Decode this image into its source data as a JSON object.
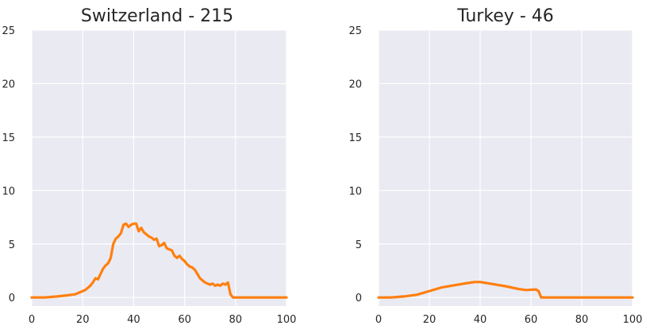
{
  "chart_data": [
    {
      "type": "line",
      "title": "Switzerland - 215",
      "xlabel": "",
      "ylabel": "",
      "xlim": [
        0,
        100
      ],
      "ylim": [
        -0.8,
        25
      ],
      "xticks": [
        0,
        20,
        40,
        60,
        80,
        100
      ],
      "yticks": [
        0,
        5,
        10,
        15,
        20,
        25
      ],
      "grid": true,
      "series": [
        {
          "color": "#ff7f0e",
          "x": [
            0,
            5,
            10,
            14,
            17,
            19,
            21,
            23,
            24,
            25,
            26,
            27,
            28,
            29,
            30,
            31,
            32,
            33,
            34,
            35,
            36,
            37,
            38,
            39,
            40,
            41,
            42,
            43,
            44,
            45,
            46,
            47,
            48,
            49,
            50,
            51,
            52,
            53,
            54,
            55,
            56,
            57,
            58,
            59,
            60,
            61,
            62,
            63,
            64,
            65,
            66,
            67,
            68,
            69,
            70,
            71,
            72,
            73,
            74,
            75,
            76,
            77,
            78,
            79,
            80,
            85,
            90,
            100
          ],
          "y": [
            0,
            0,
            0.1,
            0.2,
            0.3,
            0.5,
            0.7,
            1.1,
            1.4,
            1.8,
            1.7,
            2.2,
            2.7,
            3.0,
            3.2,
            3.7,
            5.0,
            5.5,
            5.7,
            6.0,
            6.8,
            6.9,
            6.6,
            6.8,
            6.9,
            6.9,
            6.2,
            6.5,
            6.1,
            5.9,
            5.7,
            5.6,
            5.4,
            5.5,
            4.8,
            4.9,
            5.1,
            4.6,
            4.5,
            4.4,
            3.9,
            3.7,
            3.9,
            3.6,
            3.4,
            3.1,
            2.9,
            2.8,
            2.6,
            2.2,
            1.8,
            1.6,
            1.4,
            1.3,
            1.2,
            1.3,
            1.1,
            1.2,
            1.1,
            1.3,
            1.2,
            1.4,
            0.3,
            0,
            0,
            0,
            0,
            0
          ]
        }
      ]
    },
    {
      "type": "line",
      "title": "Turkey - 46",
      "xlabel": "",
      "ylabel": "",
      "xlim": [
        0,
        100
      ],
      "ylim": [
        -0.8,
        25
      ],
      "xticks": [
        0,
        20,
        40,
        60,
        80,
        100
      ],
      "yticks": [
        0,
        5,
        10,
        15,
        20,
        25
      ],
      "grid": true,
      "series": [
        {
          "color": "#ff7f0e",
          "x": [
            0,
            5,
            10,
            15,
            20,
            25,
            30,
            35,
            38,
            40,
            45,
            50,
            55,
            58,
            62,
            63,
            64,
            70,
            80,
            90,
            100
          ],
          "y": [
            0,
            0,
            0.1,
            0.25,
            0.6,
            0.95,
            1.15,
            1.35,
            1.45,
            1.45,
            1.25,
            1.05,
            0.8,
            0.7,
            0.75,
            0.6,
            0,
            0,
            0,
            0,
            0
          ]
        }
      ]
    }
  ]
}
